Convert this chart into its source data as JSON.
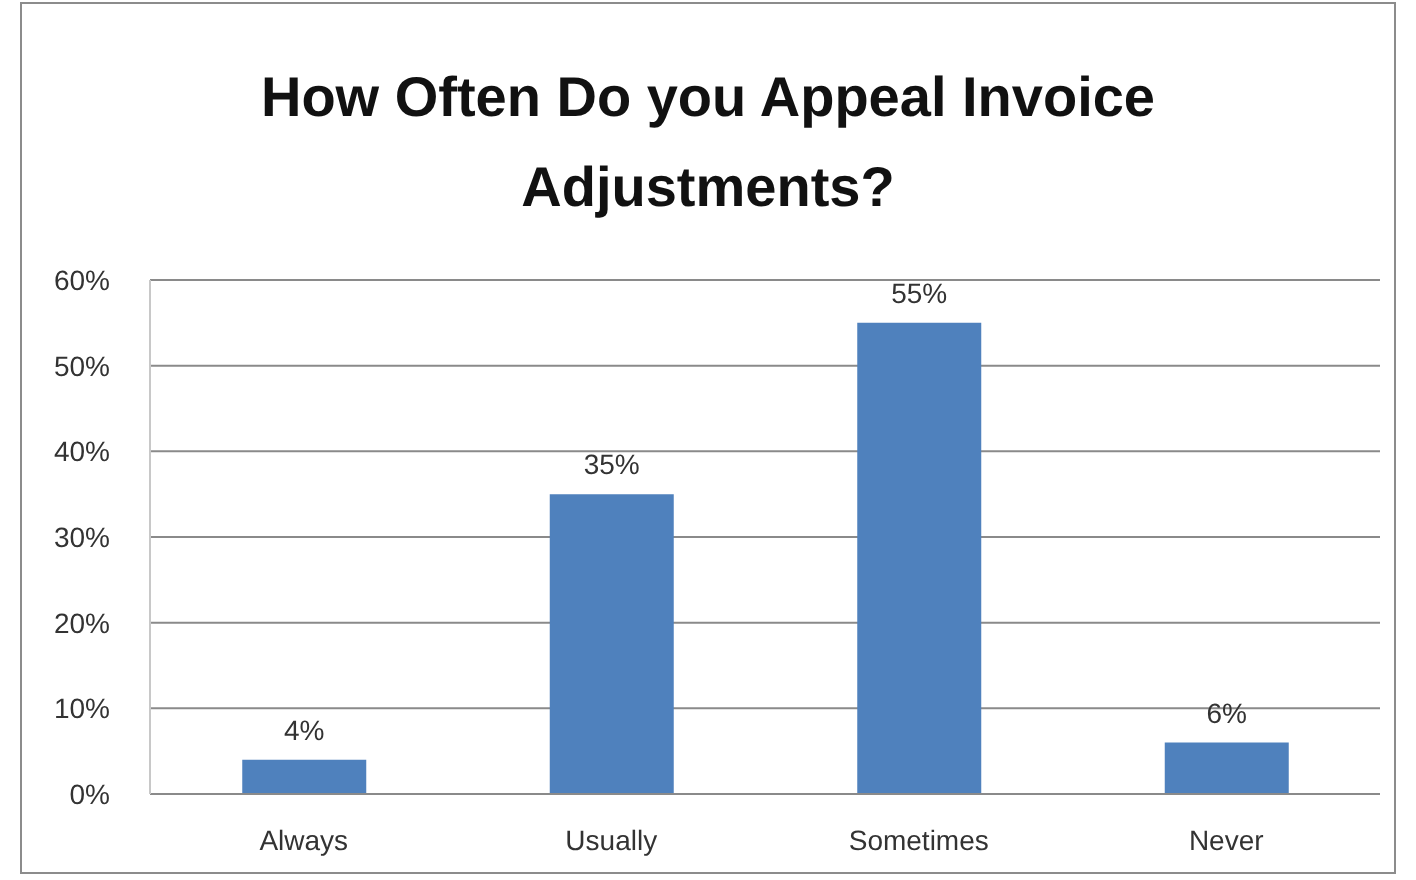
{
  "chart_data": {
    "type": "bar",
    "title": "How Often Do you Appeal Invoice Adjustments?",
    "categories": [
      "Always",
      "Usually",
      "Sometimes",
      "Never"
    ],
    "values": [
      4,
      35,
      55,
      6
    ],
    "color": "#4f81bd",
    "value_labels": [
      "4%",
      "35%",
      "55%",
      "6%"
    ],
    "ylim": [
      0,
      60
    ],
    "yticks": [
      {
        "value": 0,
        "label": "0%"
      },
      {
        "value": 10,
        "label": "10%"
      },
      {
        "value": 20,
        "label": "20%"
      },
      {
        "value": 30,
        "label": "30%"
      },
      {
        "value": 40,
        "label": "40%"
      },
      {
        "value": 50,
        "label": "50%"
      },
      {
        "value": 60,
        "label": "60%"
      }
    ],
    "grid": "y"
  }
}
